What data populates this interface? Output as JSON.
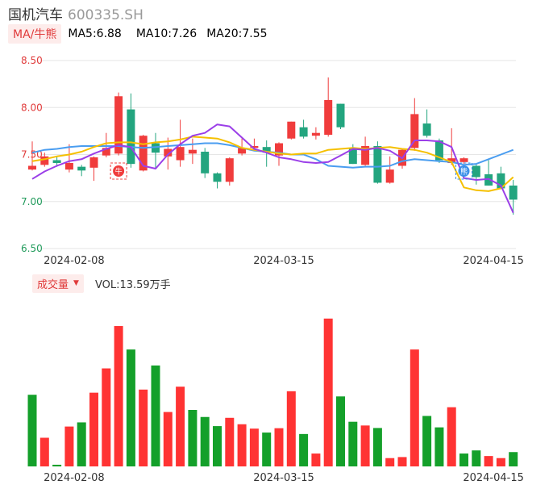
{
  "header": {
    "name": "国机汽车",
    "code": "600335.SH"
  },
  "ma_legend": {
    "button": "MA/牛熊",
    "ma5": "MA5:6.88",
    "ma10": "MA10:7.26",
    "ma20": "MA20:7.55"
  },
  "volume_legend": {
    "button": "成交量",
    "text": "VOL:13.59万手"
  },
  "colors": {
    "up": "#f03c3c",
    "down": "#23a57f",
    "vol_up": "#ff3333",
    "vol_down": "#14a02a",
    "ma5": "#9b3fe8",
    "ma10": "#f5c000",
    "ma20": "#4a9df0",
    "axis_text": "#e03a3a",
    "axis_text_low": "#1f9a5a",
    "date_text": "#333333"
  },
  "markers": [
    {
      "index": 7,
      "label": "牛",
      "color": "#f03c3c"
    },
    {
      "index": 35,
      "label": "熊",
      "color": "#3a8fe8"
    }
  ],
  "chart_data": [
    {
      "type": "candlestick",
      "title": "",
      "ylim": [
        6.5,
        8.5
      ],
      "yticks": [
        "8.50",
        "8.00",
        "7.50",
        "7.00",
        "6.50"
      ],
      "ytick_values": [
        8.5,
        8.0,
        7.5,
        7.0,
        6.5
      ],
      "xtick_labels": [
        "2024-02-08",
        "2024-03-15",
        "2024-04-15"
      ],
      "xtick_index": [
        3,
        20,
        37
      ],
      "grid": true,
      "candles": [
        {
          "o": 7.34,
          "c": 7.38,
          "h": 7.64,
          "l": 7.33
        },
        {
          "o": 7.39,
          "c": 7.48,
          "h": 7.52,
          "l": 7.37
        },
        {
          "o": 7.44,
          "c": 7.41,
          "h": 7.48,
          "l": 7.37
        },
        {
          "o": 7.34,
          "c": 7.41,
          "h": 7.61,
          "l": 7.31
        },
        {
          "o": 7.37,
          "c": 7.33,
          "h": 7.39,
          "l": 7.27
        },
        {
          "o": 7.36,
          "c": 7.47,
          "h": 7.48,
          "l": 7.22
        },
        {
          "o": 7.49,
          "c": 7.57,
          "h": 7.73,
          "l": 7.47
        },
        {
          "o": 7.51,
          "c": 8.12,
          "h": 8.16,
          "l": 7.49
        },
        {
          "o": 7.98,
          "c": 7.4,
          "h": 8.15,
          "l": 7.36
        },
        {
          "o": 7.33,
          "c": 7.7,
          "h": 7.71,
          "l": 7.32
        },
        {
          "o": 7.62,
          "c": 7.52,
          "h": 7.73,
          "l": 7.35
        },
        {
          "o": 7.48,
          "c": 7.56,
          "h": 7.68,
          "l": 7.34
        },
        {
          "o": 7.44,
          "c": 7.58,
          "h": 7.87,
          "l": 7.37
        },
        {
          "o": 7.51,
          "c": 7.55,
          "h": 7.67,
          "l": 7.4
        },
        {
          "o": 7.53,
          "c": 7.3,
          "h": 7.57,
          "l": 7.25
        },
        {
          "o": 7.3,
          "c": 7.21,
          "h": 7.31,
          "l": 7.14
        },
        {
          "o": 7.21,
          "c": 7.46,
          "h": 7.47,
          "l": 7.17
        },
        {
          "o": 7.51,
          "c": 7.57,
          "h": 7.67,
          "l": 7.49
        },
        {
          "o": 7.57,
          "c": 7.59,
          "h": 7.67,
          "l": 7.55
        },
        {
          "o": 7.58,
          "c": 7.52,
          "h": 7.65,
          "l": 7.37
        },
        {
          "o": 7.49,
          "c": 7.62,
          "h": 7.63,
          "l": 7.38
        },
        {
          "o": 7.67,
          "c": 7.85,
          "h": 7.85,
          "l": 7.66
        },
        {
          "o": 7.79,
          "c": 7.69,
          "h": 7.87,
          "l": 7.67
        },
        {
          "o": 7.7,
          "c": 7.73,
          "h": 7.79,
          "l": 7.66
        },
        {
          "o": 7.71,
          "c": 8.08,
          "h": 8.32,
          "l": 7.69
        },
        {
          "o": 8.04,
          "c": 7.79,
          "h": 8.04,
          "l": 7.77
        },
        {
          "o": 7.57,
          "c": 7.4,
          "h": 7.61,
          "l": 7.4
        },
        {
          "o": 7.39,
          "c": 7.59,
          "h": 7.69,
          "l": 7.38
        },
        {
          "o": 7.59,
          "c": 7.2,
          "h": 7.64,
          "l": 7.19
        },
        {
          "o": 7.2,
          "c": 7.34,
          "h": 7.48,
          "l": 7.19
        },
        {
          "o": 7.38,
          "c": 7.55,
          "h": 7.56,
          "l": 7.35
        },
        {
          "o": 7.57,
          "c": 7.93,
          "h": 8.1,
          "l": 7.54
        },
        {
          "o": 7.83,
          "c": 7.7,
          "h": 7.98,
          "l": 7.68
        },
        {
          "o": 7.65,
          "c": 7.44,
          "h": 7.67,
          "l": 7.41
        },
        {
          "o": 7.41,
          "c": 7.46,
          "h": 7.78,
          "l": 7.39
        },
        {
          "o": 7.42,
          "c": 7.46,
          "h": 7.47,
          "l": 7.4
        },
        {
          "o": 7.38,
          "c": 7.26,
          "h": 7.4,
          "l": 7.18
        },
        {
          "o": 7.29,
          "c": 7.17,
          "h": 7.44,
          "l": 7.17
        },
        {
          "o": 7.3,
          "c": 7.14,
          "h": 7.37,
          "l": 7.13
        },
        {
          "o": 7.17,
          "c": 7.02,
          "h": 7.23,
          "l": 6.86
        }
      ],
      "ma5": [
        7.24,
        7.32,
        7.38,
        7.43,
        7.45,
        7.51,
        7.56,
        7.6,
        7.58,
        7.38,
        7.35,
        7.5,
        7.61,
        7.7,
        7.73,
        7.82,
        7.8,
        7.68,
        7.56,
        7.52,
        7.47,
        7.45,
        7.42,
        7.41,
        7.42,
        7.49,
        7.56,
        7.55,
        7.57,
        7.54,
        7.46,
        7.65,
        7.65,
        7.64,
        7.58,
        7.25,
        7.23,
        7.24,
        7.17,
        6.88
      ],
      "ma10": [
        7.43,
        7.45,
        7.48,
        7.5,
        7.53,
        7.58,
        7.62,
        7.63,
        7.63,
        7.61,
        7.63,
        7.64,
        7.66,
        7.69,
        7.68,
        7.67,
        7.63,
        7.57,
        7.55,
        7.53,
        7.51,
        7.5,
        7.51,
        7.51,
        7.55,
        7.56,
        7.57,
        7.56,
        7.57,
        7.58,
        7.56,
        7.55,
        7.52,
        7.47,
        7.42,
        7.15,
        7.12,
        7.11,
        7.14,
        7.26
      ],
      "ma20": [
        7.52,
        7.55,
        7.56,
        7.58,
        7.59,
        7.59,
        7.59,
        7.59,
        7.58,
        7.57,
        7.58,
        7.59,
        7.6,
        7.61,
        7.62,
        7.62,
        7.6,
        7.57,
        7.54,
        7.53,
        7.52,
        7.5,
        7.5,
        7.45,
        7.38,
        7.37,
        7.36,
        7.37,
        7.37,
        7.38,
        7.43,
        7.45,
        7.44,
        7.43,
        7.42,
        7.39,
        7.4,
        7.45,
        7.5,
        7.55
      ]
    },
    {
      "type": "bar",
      "title": "",
      "series": [
        {
          "values": [
            34.5,
            13.8,
            0.8,
            19.2,
            21.2,
            35.5,
            47.2,
            67.6,
            56.3,
            37.0,
            48.6,
            26.2,
            38.4,
            27.2,
            23.8,
            19.4,
            23.4,
            20.3,
            18.2,
            16.3,
            18.4,
            36.2,
            15.6,
            6.2,
            71.2,
            33.7,
            21.5,
            19.7,
            18.5,
            4.0,
            4.5,
            56.3,
            24.3,
            18.8,
            28.5,
            6.2,
            7.7,
            5.0,
            4.0,
            6.9
          ],
          "up": [
            false,
            true,
            false,
            true,
            false,
            true,
            true,
            true,
            false,
            true,
            false,
            true,
            true,
            false,
            false,
            false,
            true,
            true,
            true,
            false,
            true,
            true,
            false,
            true,
            true,
            false,
            false,
            true,
            false,
            true,
            true,
            true,
            false,
            false,
            true,
            false,
            false,
            true,
            true,
            false
          ]
        }
      ],
      "xtick_labels": [
        "2024-02-08",
        "2024-03-15",
        "2024-04-15"
      ],
      "xtick_index": [
        3,
        20,
        37
      ]
    }
  ]
}
